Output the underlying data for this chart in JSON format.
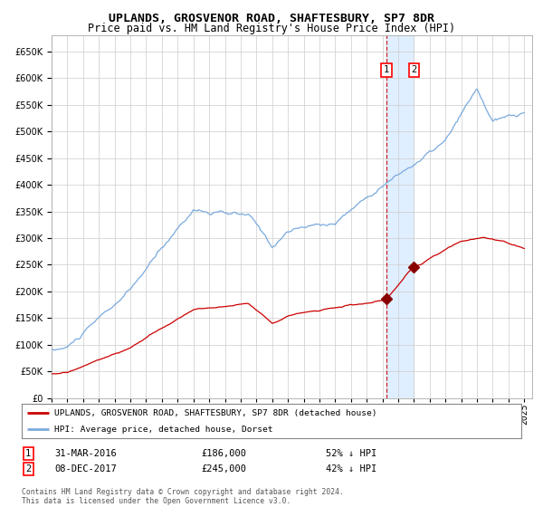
{
  "title": "UPLANDS, GROSVENOR ROAD, SHAFTESBURY, SP7 8DR",
  "subtitle": "Price paid vs. HM Land Registry's House Price Index (HPI)",
  "legend_line1": "UPLANDS, GROSVENOR ROAD, SHAFTESBURY, SP7 8DR (detached house)",
  "legend_line2": "HPI: Average price, detached house, Dorset",
  "transaction1_date": "31-MAR-2016",
  "transaction1_price": 186000,
  "transaction1_label": "52% ↓ HPI",
  "transaction2_date": "08-DEC-2017",
  "transaction2_price": 245000,
  "transaction2_label": "42% ↓ HPI",
  "footer": "Contains HM Land Registry data © Crown copyright and database right 2024.\nThis data is licensed under the Open Government Licence v3.0.",
  "hpi_color": "#7aaadd",
  "price_color": "#cc0000",
  "marker_color": "#880000",
  "vline_color": "#cc0000",
  "shade_color": "#ddeeff",
  "background_color": "#ffffff",
  "grid_color": "#cccccc",
  "ylim": [
    0,
    680000
  ],
  "ytick_step": 50000,
  "title_fontsize": 9.5,
  "subtitle_fontsize": 8.5,
  "tick_fontsize": 7,
  "t1_year": 2016.25,
  "t2_year": 2018.0
}
